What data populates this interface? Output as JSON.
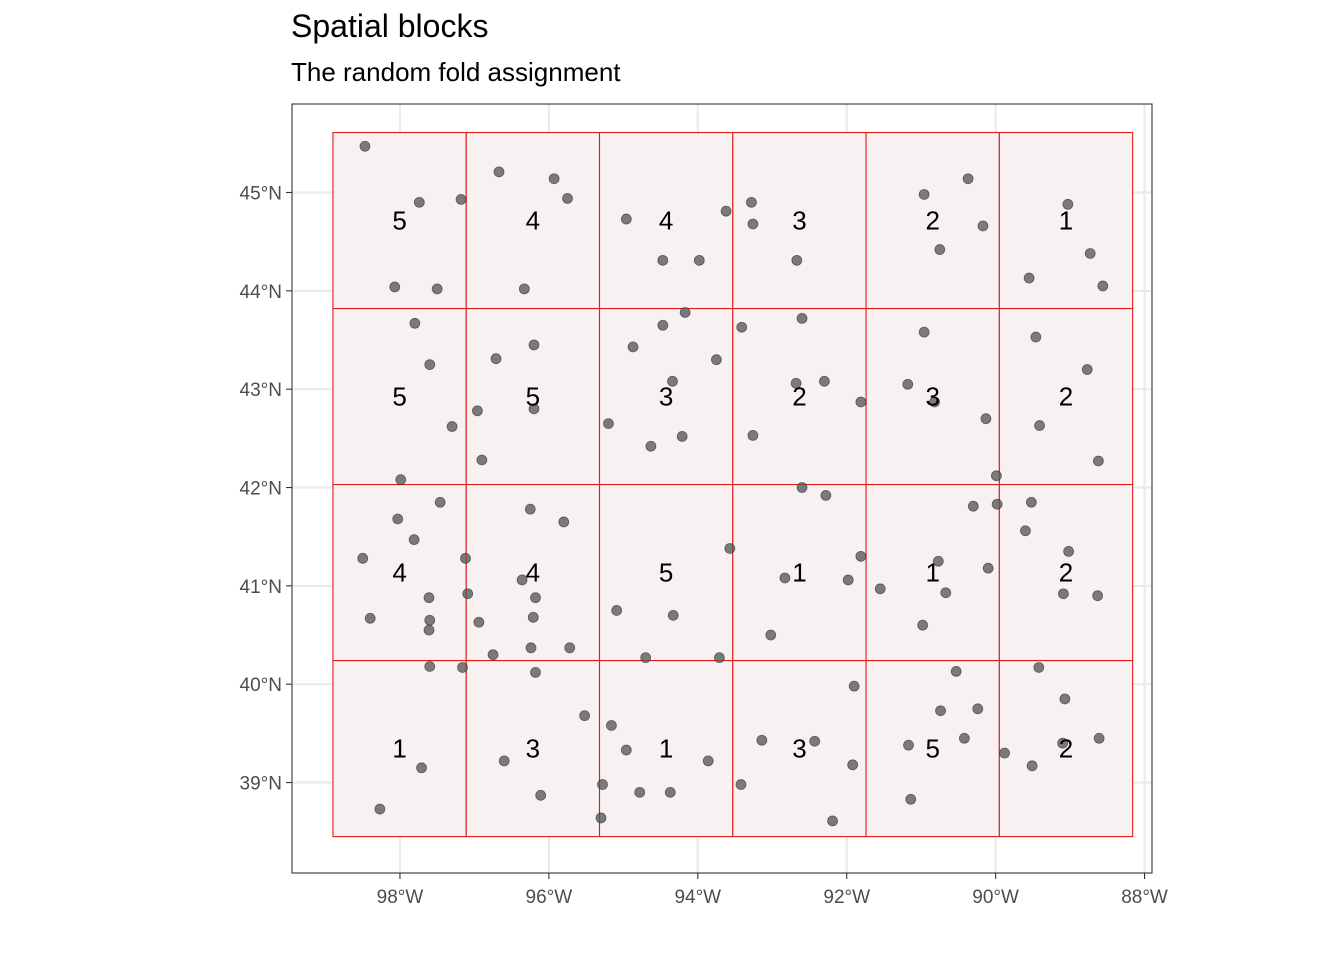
{
  "title": "Spatial blocks",
  "subtitle": "The random fold assignment",
  "chart_data": {
    "type": "scatter",
    "title": "Spatial blocks",
    "subtitle": "The random fold assignment",
    "xlabel": "",
    "ylabel": "",
    "xlim": [
      -99.45,
      -87.9
    ],
    "ylim": [
      38.08,
      45.9
    ],
    "x_ticks": [
      -98,
      -96,
      -94,
      -92,
      -90,
      -88
    ],
    "x_tick_labels": [
      "98°W",
      "96°W",
      "94°W",
      "92°W",
      "90°W",
      "88°W"
    ],
    "y_ticks": [
      39,
      40,
      41,
      42,
      43,
      44,
      45
    ],
    "y_tick_labels": [
      "39°N",
      "40°N",
      "41°N",
      "42°N",
      "43°N",
      "44°N",
      "45°N"
    ],
    "grid": true,
    "colors": {
      "block_outline": "#e31a1c",
      "block_fill": "#f7f1f1",
      "point": "#595959",
      "grid": "#ebebeb",
      "panel_border": "#333333",
      "tick_text": "#4d4d4d"
    },
    "blocks": {
      "lon_edges": [
        -98.9,
        -97.11,
        -95.32,
        -93.53,
        -91.74,
        -89.95,
        -88.16
      ],
      "lat_edges": [
        38.45,
        40.24,
        42.03,
        43.82,
        45.61
      ],
      "folds_by_row_top_to_bottom": [
        [
          "5",
          "4",
          "4",
          "3",
          "2",
          "1"
        ],
        [
          "5",
          "5",
          "3",
          "2",
          "3",
          "2"
        ],
        [
          "4",
          "4",
          "5",
          "1",
          "1",
          "2"
        ],
        [
          "1",
          "3",
          "1",
          "3",
          "5",
          "2"
        ]
      ]
    },
    "points": [
      [
        -98.47,
        45.47
      ],
      [
        -97.74,
        44.9
      ],
      [
        -97.18,
        44.93
      ],
      [
        -96.67,
        45.21
      ],
      [
        -95.93,
        45.14
      ],
      [
        -95.75,
        44.94
      ],
      [
        -94.96,
        44.73
      ],
      [
        -93.62,
        44.81
      ],
      [
        -93.28,
        44.9
      ],
      [
        -93.26,
        44.68
      ],
      [
        -90.96,
        44.98
      ],
      [
        -90.37,
        45.14
      ],
      [
        -90.17,
        44.66
      ],
      [
        -89.03,
        44.88
      ],
      [
        -90.75,
        44.42
      ],
      [
        -98.07,
        44.04
      ],
      [
        -97.5,
        44.02
      ],
      [
        -96.33,
        44.02
      ],
      [
        -94.47,
        44.31
      ],
      [
        -93.98,
        44.31
      ],
      [
        -92.67,
        44.31
      ],
      [
        -89.55,
        44.13
      ],
      [
        -88.73,
        44.38
      ],
      [
        -88.56,
        44.05
      ],
      [
        -97.8,
        43.67
      ],
      [
        -97.6,
        43.25
      ],
      [
        -96.71,
        43.31
      ],
      [
        -96.2,
        43.45
      ],
      [
        -94.47,
        43.65
      ],
      [
        -94.17,
        43.78
      ],
      [
        -94.87,
        43.43
      ],
      [
        -93.41,
        43.63
      ],
      [
        -92.6,
        43.72
      ],
      [
        -89.46,
        43.53
      ],
      [
        -90.96,
        43.58
      ],
      [
        -93.75,
        43.3
      ],
      [
        -92.68,
        43.06
      ],
      [
        -92.3,
        43.08
      ],
      [
        -91.81,
        42.87
      ],
      [
        -88.77,
        43.2
      ],
      [
        -91.18,
        43.05
      ],
      [
        -90.82,
        42.87
      ],
      [
        -94.34,
        43.08
      ],
      [
        -96.2,
        42.8
      ],
      [
        -96.96,
        42.78
      ],
      [
        -97.3,
        42.62
      ],
      [
        -95.2,
        42.65
      ],
      [
        -94.63,
        42.42
      ],
      [
        -94.21,
        42.52
      ],
      [
        -93.26,
        42.53
      ],
      [
        -90.13,
        42.7
      ],
      [
        -89.41,
        42.63
      ],
      [
        -96.9,
        42.28
      ],
      [
        -88.62,
        42.27
      ],
      [
        -97.99,
        42.08
      ],
      [
        -89.99,
        42.12
      ],
      [
        -92.6,
        42.0
      ],
      [
        -92.28,
        41.92
      ],
      [
        -90.3,
        41.81
      ],
      [
        -89.98,
        41.83
      ],
      [
        -89.52,
        41.85
      ],
      [
        -89.6,
        41.56
      ],
      [
        -98.03,
        41.68
      ],
      [
        -97.46,
        41.85
      ],
      [
        -96.25,
        41.78
      ],
      [
        -95.8,
        41.65
      ],
      [
        -97.81,
        41.47
      ],
      [
        -93.57,
        41.38
      ],
      [
        -98.5,
        41.28
      ],
      [
        -97.12,
        41.28
      ],
      [
        -91.81,
        41.3
      ],
      [
        -90.77,
        41.25
      ],
      [
        -89.02,
        41.35
      ],
      [
        -90.1,
        41.18
      ],
      [
        -92.83,
        41.08
      ],
      [
        -91.98,
        41.06
      ],
      [
        -96.36,
        41.06
      ],
      [
        -91.55,
        40.97
      ],
      [
        -90.67,
        40.93
      ],
      [
        -89.09,
        40.92
      ],
      [
        -88.63,
        40.9
      ],
      [
        -97.09,
        40.92
      ],
      [
        -96.18,
        40.88
      ],
      [
        -97.61,
        40.88
      ],
      [
        -98.4,
        40.67
      ],
      [
        -97.6,
        40.65
      ],
      [
        -97.61,
        40.55
      ],
      [
        -96.94,
        40.63
      ],
      [
        -96.21,
        40.68
      ],
      [
        -95.09,
        40.75
      ],
      [
        -94.33,
        40.7
      ],
      [
        -90.98,
        40.6
      ],
      [
        -93.02,
        40.5
      ],
      [
        -96.24,
        40.37
      ],
      [
        -95.72,
        40.37
      ],
      [
        -96.75,
        40.3
      ],
      [
        -94.7,
        40.27
      ],
      [
        -93.71,
        40.27
      ],
      [
        -97.6,
        40.18
      ],
      [
        -97.16,
        40.17
      ],
      [
        -96.18,
        40.12
      ],
      [
        -90.53,
        40.13
      ],
      [
        -89.42,
        40.17
      ],
      [
        -91.9,
        39.98
      ],
      [
        -89.07,
        39.85
      ],
      [
        -90.74,
        39.73
      ],
      [
        -90.24,
        39.75
      ],
      [
        -95.52,
        39.68
      ],
      [
        -95.16,
        39.58
      ],
      [
        -94.96,
        39.33
      ],
      [
        -93.14,
        39.43
      ],
      [
        -92.43,
        39.42
      ],
      [
        -91.17,
        39.38
      ],
      [
        -90.42,
        39.45
      ],
      [
        -89.1,
        39.4
      ],
      [
        -88.61,
        39.45
      ],
      [
        -96.6,
        39.22
      ],
      [
        -93.86,
        39.22
      ],
      [
        -91.92,
        39.18
      ],
      [
        -89.88,
        39.3
      ],
      [
        -89.51,
        39.17
      ],
      [
        -97.71,
        39.15
      ],
      [
        -95.28,
        38.98
      ],
      [
        -94.78,
        38.9
      ],
      [
        -94.37,
        38.9
      ],
      [
        -93.42,
        38.98
      ],
      [
        -96.11,
        38.87
      ],
      [
        -91.14,
        38.83
      ],
      [
        -98.27,
        38.73
      ],
      [
        -95.3,
        38.64
      ],
      [
        -92.19,
        38.61
      ]
    ]
  }
}
